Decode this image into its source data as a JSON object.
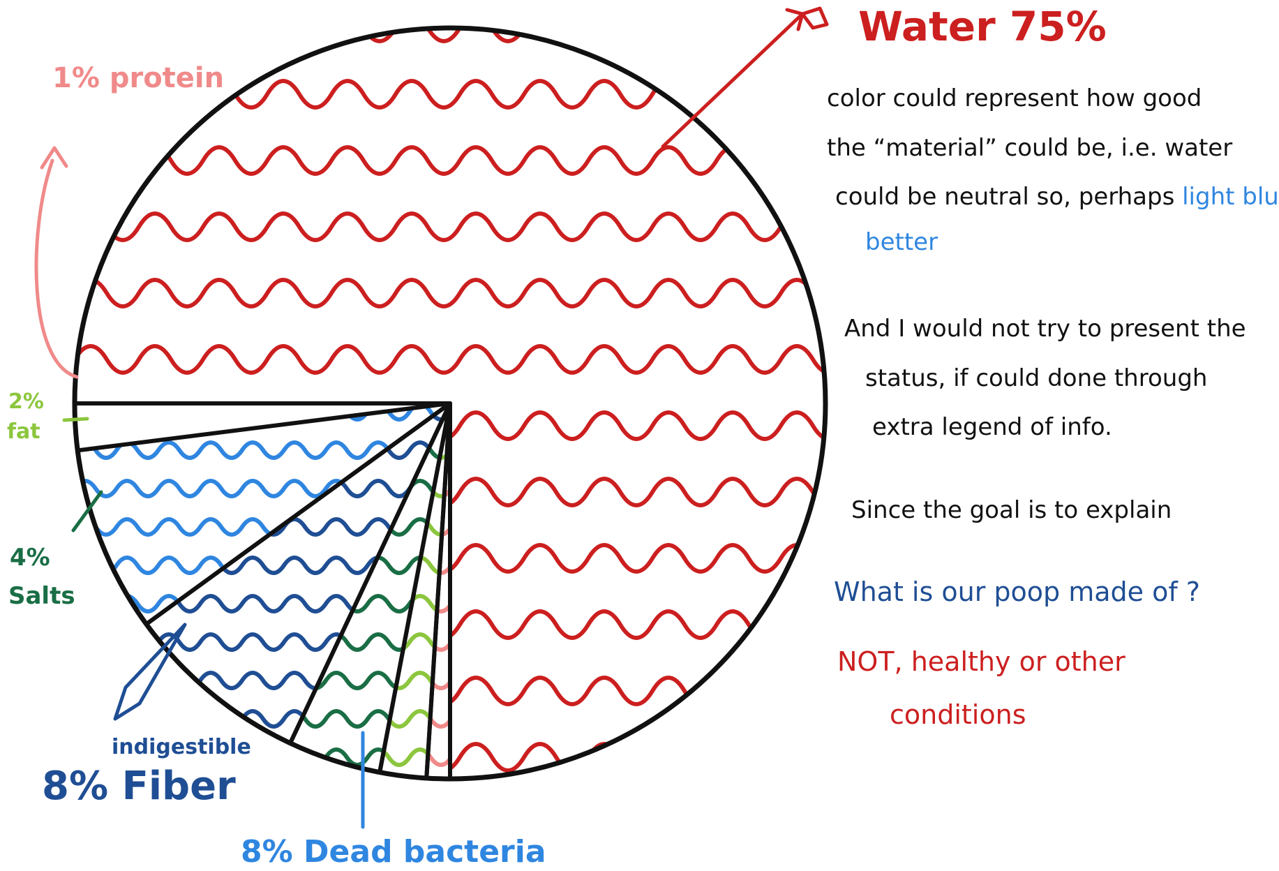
{
  "chart_data": {
    "type": "pie",
    "slices": [
      {
        "label": "Water",
        "value": 75,
        "value_text": "75%",
        "color": "#cc1f1f"
      },
      {
        "label": "protein",
        "value": 1,
        "value_text": "1%",
        "color": "#f08a8a"
      },
      {
        "label": "fat",
        "value": 2,
        "value_text": "2%",
        "color": "#8cc63e"
      },
      {
        "label": "Salts",
        "value": 4,
        "value_text": "4%",
        "color": "#1a6e45"
      },
      {
        "label": "indigestible Fiber",
        "value": 8,
        "value_text": "8%",
        "color": "#1f4e94"
      },
      {
        "label": "Dead bacteria",
        "value": 8,
        "value_text": "8%",
        "color": "#2f86e0"
      }
    ],
    "labels": {
      "water": "Water 75%",
      "protein": "1% protein",
      "fat_pct": "2%",
      "fat_name": "fat",
      "salts_pct": "4%",
      "salts_name": "Salts",
      "fiber_small": "indigestible",
      "fiber_main": "8% Fiber",
      "bacteria": "8% Dead bacteria"
    }
  },
  "notes": {
    "note1_line1": "color could represent how good",
    "note1_line2": "the “material” could be, i.e. water",
    "note1_line3_a": "could be neutral so, perhaps ",
    "note1_line3_b": "light blue is",
    "note1_line4": "better",
    "note2_line1": "And I would not try to present the",
    "note2_line2": "status, if could done through",
    "note2_line3": "extra legend of info.",
    "note3_line1": "Since the goal is to explain",
    "question": "What is our poop made of ?",
    "red_line1": "NOT, healthy or other",
    "red_line2": "conditions"
  },
  "colors": {
    "outline": "#111111",
    "water": "#cc1f1f",
    "protein": "#f08a8a",
    "fat": "#8cc63e",
    "salts": "#1a6e45",
    "fiber": "#1f4e94",
    "bacteria": "#2f86e0",
    "note_black": "#111111",
    "note_light_blue": "#2f86e0",
    "note_blue": "#1f4e94",
    "note_red": "#cc1f1f"
  }
}
